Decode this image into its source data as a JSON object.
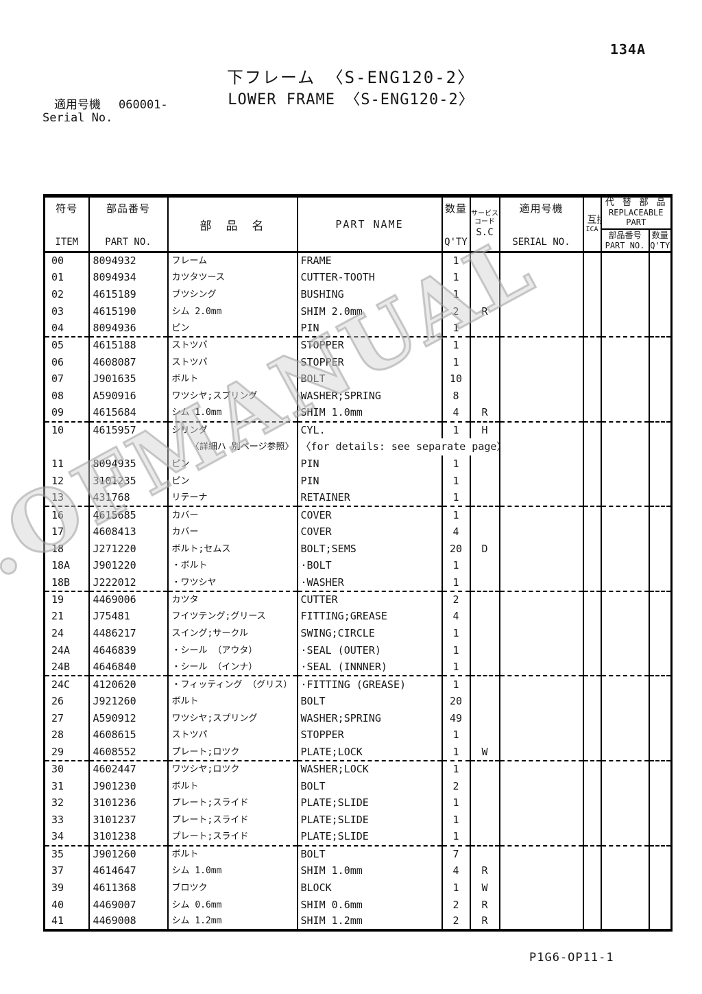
{
  "page": {
    "page_number": "134A",
    "title_ja": "下フレーム 〈S-ENG120-2〉",
    "title_en": "LOWER FRAME 〈S-ENG120-2〉",
    "applicable_label_ja": "適用号機",
    "applicable_value": "060001-",
    "applicable_label_en": "Serial No.",
    "footer_code": "P1G6-OP11-1"
  },
  "watermark": {
    "text": ".OFMANUAL"
  },
  "table": {
    "columns": {
      "item_ja": "符号",
      "item_en": "ITEM",
      "part_no_ja": "部品番号",
      "part_no_en": "PART NO.",
      "name_header_ja": "部　品　名",
      "name_header_en": "PART NAME",
      "qty_ja": "数量",
      "qty_en": "Q'TY",
      "sc_ja_line1": "サービス",
      "sc_ja_line2": "コード",
      "sc_en": "S.C",
      "serial_ja": "適用号機",
      "serial_en": "SERIAL NO.",
      "ica_ja": "互換性",
      "ica_en": "ICA",
      "replaceable_ja": "代 替 部 品",
      "replaceable_en1": "REPLACEABLE",
      "replaceable_en2": "PART",
      "rep_part_no_ja": "部品番号",
      "rep_part_no_en": "PART NO.",
      "rep_qty_ja": "数量",
      "rep_qty_en": "Q'TY"
    },
    "groups": [
      [
        {
          "item": "00",
          "part_no": "8094932",
          "name_ja": "フレーム",
          "part_name": "FRAME",
          "qty": "1",
          "sc": ""
        },
        {
          "item": "01",
          "part_no": "8094934",
          "name_ja": "カツタツース",
          "part_name": "CUTTER-TOOTH",
          "qty": "1",
          "sc": ""
        },
        {
          "item": "02",
          "part_no": "4615189",
          "name_ja": "ブツシング",
          "part_name": "BUSHING",
          "qty": "1",
          "sc": ""
        },
        {
          "item": "03",
          "part_no": "4615190",
          "name_ja": "シム 2.0mm",
          "part_name": "SHIM 2.0mm",
          "qty": "2",
          "sc": "R"
        },
        {
          "item": "04",
          "part_no": "8094936",
          "name_ja": "ピン",
          "part_name": "PIN",
          "qty": "1",
          "sc": ""
        }
      ],
      [
        {
          "item": "05",
          "part_no": "4615188",
          "name_ja": "ストツパ",
          "part_name": "STOPPER",
          "qty": "1",
          "sc": ""
        },
        {
          "item": "06",
          "part_no": "4608087",
          "name_ja": "ストツパ",
          "part_name": "STOPPER",
          "qty": "1",
          "sc": ""
        },
        {
          "item": "07",
          "part_no": "J901635",
          "name_ja": "ボルト",
          "part_name": "BOLT",
          "qty": "10",
          "sc": ""
        },
        {
          "item": "08",
          "part_no": "A590916",
          "name_ja": "ワツシヤ;スプリング",
          "part_name": "WASHER;SPRING",
          "qty": "8",
          "sc": ""
        },
        {
          "item": "09",
          "part_no": "4615684",
          "name_ja": "シム 1.0mm",
          "part_name": "SHIM 1.0mm",
          "qty": "4",
          "sc": "R"
        }
      ],
      [
        {
          "item": "10",
          "part_no": "4615957",
          "name_ja": "シリンダ",
          "part_name": "CYL.",
          "qty": "1",
          "sc": "H"
        },
        {
          "note": true,
          "name_ja": "〈詳細ハ 別ページ参照〉",
          "part_name": "〈for details: see separate page〉"
        },
        {
          "item": "11",
          "part_no": "8094935",
          "name_ja": "ピン",
          "part_name": "PIN",
          "qty": "1",
          "sc": ""
        },
        {
          "item": "12",
          "part_no": "3101235",
          "name_ja": "ピン",
          "part_name": "PIN",
          "qty": "1",
          "sc": ""
        },
        {
          "item": "13",
          "part_no": "431768",
          "name_ja": "リテーナ",
          "part_name": "RETAINER",
          "qty": "1",
          "sc": ""
        }
      ],
      [
        {
          "item": "16",
          "part_no": "4615685",
          "name_ja": "カバー",
          "part_name": "COVER",
          "qty": "1",
          "sc": ""
        },
        {
          "item": "17",
          "part_no": "4608413",
          "name_ja": "カバー",
          "part_name": "COVER",
          "qty": "4",
          "sc": ""
        },
        {
          "item": "18",
          "part_no": "J271220",
          "name_ja": "ボルト;セムス",
          "part_name": "BOLT;SEMS",
          "qty": "20",
          "sc": "D"
        },
        {
          "item": "18A",
          "part_no": "J901220",
          "name_ja": "・ボルト",
          "part_name": "·BOLT",
          "qty": "1",
          "sc": ""
        },
        {
          "item": "18B",
          "part_no": "J222012",
          "name_ja": "・ワツシヤ",
          "part_name": "·WASHER",
          "qty": "1",
          "sc": ""
        }
      ],
      [
        {
          "item": "19",
          "part_no": "4469006",
          "name_ja": "カツタ",
          "part_name": "CUTTER",
          "qty": "2",
          "sc": ""
        },
        {
          "item": "21",
          "part_no": "J75481",
          "name_ja": "フイツテング;グリース",
          "part_name": "FITTING;GREASE",
          "qty": "4",
          "sc": ""
        },
        {
          "item": "24",
          "part_no": "4486217",
          "name_ja": "スイング;サークル",
          "part_name": "SWING;CIRCLE",
          "qty": "1",
          "sc": ""
        },
        {
          "item": "24A",
          "part_no": "4646839",
          "name_ja": "・シール （アウタ）",
          "part_name": "·SEAL (OUTER)",
          "qty": "1",
          "sc": ""
        },
        {
          "item": "24B",
          "part_no": "4646840",
          "name_ja": "・シール （インナ）",
          "part_name": "·SEAL (INNNER)",
          "qty": "1",
          "sc": ""
        }
      ],
      [
        {
          "item": "24C",
          "part_no": "4120620",
          "name_ja": "・フィッティング （グリス）",
          "part_name": "·FITTING (GREASE)",
          "qty": "1",
          "sc": ""
        },
        {
          "item": "26",
          "part_no": "J921260",
          "name_ja": "ボルト",
          "part_name": "BOLT",
          "qty": "20",
          "sc": ""
        },
        {
          "item": "27",
          "part_no": "A590912",
          "name_ja": "ワツシヤ;スプリング",
          "part_name": "WASHER;SPRING",
          "qty": "49",
          "sc": ""
        },
        {
          "item": "28",
          "part_no": "4608615",
          "name_ja": "ストツパ",
          "part_name": "STOPPER",
          "qty": "1",
          "sc": ""
        },
        {
          "item": "29",
          "part_no": "4608552",
          "name_ja": "プレート;ロツク",
          "part_name": "PLATE;LOCK",
          "qty": "1",
          "sc": "W"
        }
      ],
      [
        {
          "item": "30",
          "part_no": "4602447",
          "name_ja": "ワツシヤ;ロツク",
          "part_name": "WASHER;LOCK",
          "qty": "1",
          "sc": ""
        },
        {
          "item": "31",
          "part_no": "J901230",
          "name_ja": "ボルト",
          "part_name": "BOLT",
          "qty": "2",
          "sc": ""
        },
        {
          "item": "32",
          "part_no": "3101236",
          "name_ja": "プレート;スライド",
          "part_name": "PLATE;SLIDE",
          "qty": "1",
          "sc": ""
        },
        {
          "item": "33",
          "part_no": "3101237",
          "name_ja": "プレート;スライド",
          "part_name": "PLATE;SLIDE",
          "qty": "1",
          "sc": ""
        },
        {
          "item": "34",
          "part_no": "3101238",
          "name_ja": "プレート;スライド",
          "part_name": "PLATE;SLIDE",
          "qty": "1",
          "sc": ""
        }
      ],
      [
        {
          "item": "35",
          "part_no": "J901260",
          "name_ja": "ボルト",
          "part_name": "BOLT",
          "qty": "7",
          "sc": ""
        },
        {
          "item": "37",
          "part_no": "4614647",
          "name_ja": "シム 1.0mm",
          "part_name": "SHIM 1.0mm",
          "qty": "4",
          "sc": "R"
        },
        {
          "item": "39",
          "part_no": "4611368",
          "name_ja": "ブロツク",
          "part_name": "BLOCK",
          "qty": "1",
          "sc": "W"
        },
        {
          "item": "40",
          "part_no": "4469007",
          "name_ja": "シム 0.6mm",
          "part_name": "SHIM 0.6mm",
          "qty": "2",
          "sc": "R"
        },
        {
          "item": "41",
          "part_no": "4469008",
          "name_ja": "シム 1.2mm",
          "part_name": "SHIM 1.2mm",
          "qty": "2",
          "sc": "R"
        }
      ]
    ]
  }
}
